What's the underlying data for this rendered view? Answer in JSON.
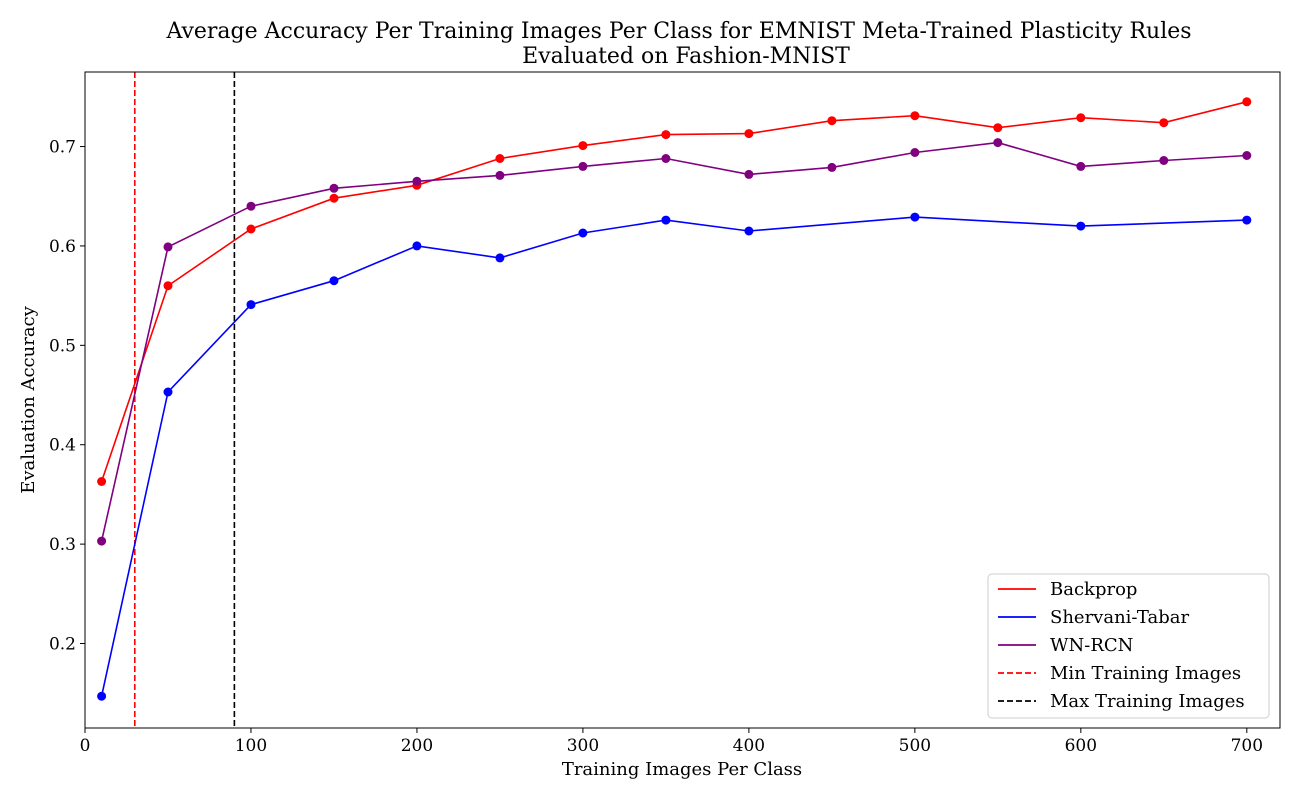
{
  "chart_data": {
    "type": "line",
    "title": "Average Accuracy Per Training Images Per Class for EMNIST Meta-Trained Plasticity Rules",
    "subtitle": "Evaluated on Fashion-MNIST",
    "xlabel": "Training Images Per Class",
    "ylabel": "Evaluation Accuracy",
    "xlim": [
      0,
      720
    ],
    "ylim": [
      0.115,
      0.775
    ],
    "xticks": [
      0,
      100,
      200,
      300,
      400,
      500,
      600,
      700
    ],
    "xtick_labels": [
      "0",
      "100",
      "200",
      "300",
      "400",
      "500",
      "600",
      "700"
    ],
    "yticks": [
      0.2,
      0.3,
      0.4,
      0.5,
      0.6,
      0.7
    ],
    "ytick_labels": [
      "0.2",
      "0.3",
      "0.4",
      "0.5",
      "0.6",
      "0.7"
    ],
    "grid": false,
    "legend_position": "lower-right",
    "series": [
      {
        "name": "Backprop",
        "color": "#ff0000",
        "x": [
          10,
          50,
          100,
          150,
          200,
          250,
          300,
          350,
          400,
          450,
          500,
          550,
          600,
          650,
          700
        ],
        "values": [
          0.363,
          0.56,
          0.617,
          0.648,
          0.661,
          0.688,
          0.701,
          0.712,
          0.713,
          0.726,
          0.731,
          0.719,
          0.729,
          0.724,
          0.745
        ]
      },
      {
        "name": "Shervani-Tabar",
        "color": "#0000ff",
        "x": [
          10,
          50,
          100,
          150,
          200,
          250,
          300,
          350,
          400,
          500,
          600,
          700
        ],
        "values": [
          0.147,
          0.453,
          0.541,
          0.565,
          0.6,
          0.588,
          0.613,
          0.626,
          0.615,
          0.629,
          0.62,
          0.626
        ]
      },
      {
        "name": "WN-RCN",
        "color": "#800080",
        "x": [
          10,
          50,
          100,
          150,
          200,
          250,
          300,
          350,
          400,
          450,
          500,
          550,
          600,
          650,
          700
        ],
        "values": [
          0.303,
          0.599,
          0.64,
          0.658,
          0.665,
          0.671,
          0.68,
          0.688,
          0.672,
          0.679,
          0.694,
          0.704,
          0.68,
          0.686,
          0.691
        ]
      }
    ],
    "vlines": [
      {
        "name": "Min Training Images",
        "x": 30,
        "color": "#ff0000",
        "style": "dashed"
      },
      {
        "name": "Max Training Images",
        "x": 90,
        "color": "#000000",
        "style": "dashed"
      }
    ]
  }
}
